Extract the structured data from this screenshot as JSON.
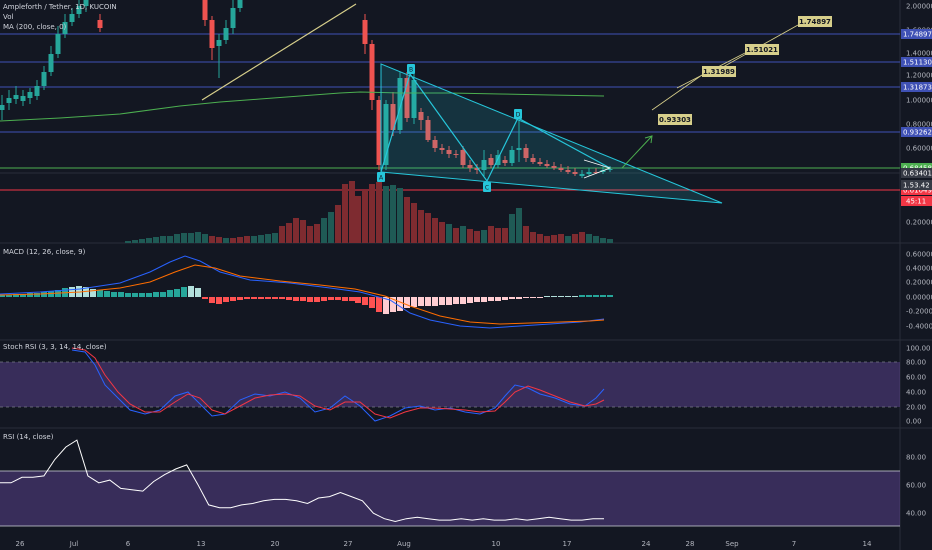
{
  "header": {
    "symbol_line": "Ampleforth / Tether, 1D, KUCOIN",
    "vol_label": "Vol",
    "ma_label": "MA (200, close, 0)"
  },
  "colors": {
    "bg": "#131722",
    "up": "#26a69a",
    "down": "#ef5350",
    "ma": "#4caf50",
    "triangle": "#26c6da",
    "grid_hline": "#3f51b5",
    "green_level": "#4caf50",
    "red_level": "#f23645",
    "macd_line": "#2962ff",
    "signal_line": "#ff6d00",
    "stoch_k": "#2962ff",
    "stoch_d": "#f23645",
    "rsi_line": "#ffffff",
    "band_fill": "#4a1d6e",
    "target_fill": "#d7cf8b"
  },
  "chart_data": [
    {
      "type": "candlestick",
      "title": "Ampleforth / Tether, 1D, KUCOIN",
      "scale": "log",
      "ylim": [
        0.15,
        2.0
      ],
      "y_ticks": [
        "2.00000",
        "1.60000",
        "1.40000",
        "1.20000",
        "1.00000",
        "0.80000",
        "0.60000",
        "0.40000",
        "0.20000"
      ],
      "x_ticks": [
        "26",
        "Jul",
        "6",
        "13",
        "20",
        "27",
        "Aug",
        "10",
        "17",
        "24",
        "Sep",
        "7",
        "14"
      ],
      "levels": [
        {
          "label": "1.74897",
          "color": "#3f51b5"
        },
        {
          "label": "1.51130",
          "color": "#3f51b5"
        },
        {
          "label": "1.31873",
          "color": "#3f51b5"
        },
        {
          "label": "0.93262",
          "color": "#3f51b5"
        },
        {
          "label": "0.68458",
          "color": "#4caf50"
        },
        {
          "label": "0.63401",
          "color": "#2a2e39"
        },
        {
          "label": "0.61049",
          "color": "#f23645"
        }
      ],
      "pattern_labels": [
        "A",
        "B",
        "C",
        "D"
      ],
      "targets": [
        "1.74897",
        "1.51021",
        "1.31989",
        "0.93303"
      ],
      "series": [
        {
          "name": "MA (200, close, 0)"
        }
      ]
    },
    {
      "type": "line",
      "title": "MACD (12, 26, close, 9)",
      "y_ticks": [
        "0.60000",
        "0.40000",
        "0.20000",
        "0.00000",
        "-0.20000",
        "-0.40000"
      ]
    },
    {
      "type": "line",
      "title": "Stoch RSI (3, 3, 14, 14, close)",
      "y_ticks": [
        "100.00",
        "80.00",
        "60.00",
        "40.00",
        "20.00",
        "0.00"
      ],
      "band": [
        20,
        80
      ]
    },
    {
      "type": "line",
      "title": "RSI (14, close)",
      "y_ticks": [
        "80.00",
        "60.00",
        "40.00"
      ],
      "band": [
        30,
        70
      ],
      "values": [
        62,
        62,
        66,
        66,
        67,
        79,
        88,
        93,
        67,
        62,
        64,
        58,
        57,
        56,
        63,
        68,
        72,
        75,
        61,
        46,
        44,
        44,
        46,
        47,
        49,
        50,
        50,
        49,
        47,
        51,
        52,
        55,
        52,
        49,
        40,
        36,
        34,
        36,
        37,
        36,
        35,
        35,
        36,
        35,
        36,
        35,
        35,
        36,
        35,
        36,
        37,
        36,
        35,
        35,
        36,
        36
      ]
    }
  ]
}
